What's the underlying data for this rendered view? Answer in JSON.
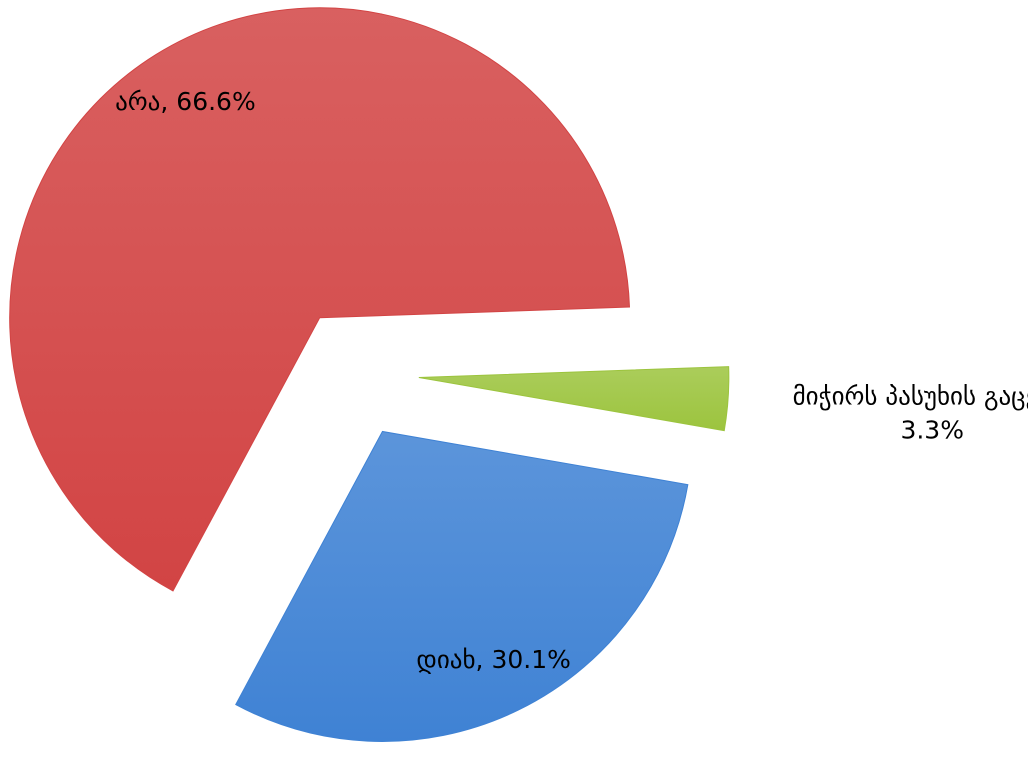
{
  "chart_data": {
    "type": "pie",
    "categories": [
      "არა",
      "დიახ",
      "მიჭირს პასუხის გაცემა"
    ],
    "values": [
      66.6,
      30.1,
      3.3
    ],
    "value_labels": [
      "66.6%",
      "30.1%",
      "3.3%"
    ],
    "label_separator": ", ",
    "colors": [
      "#d24444",
      "#3f82d4",
      "#9cc43e"
    ]
  }
}
